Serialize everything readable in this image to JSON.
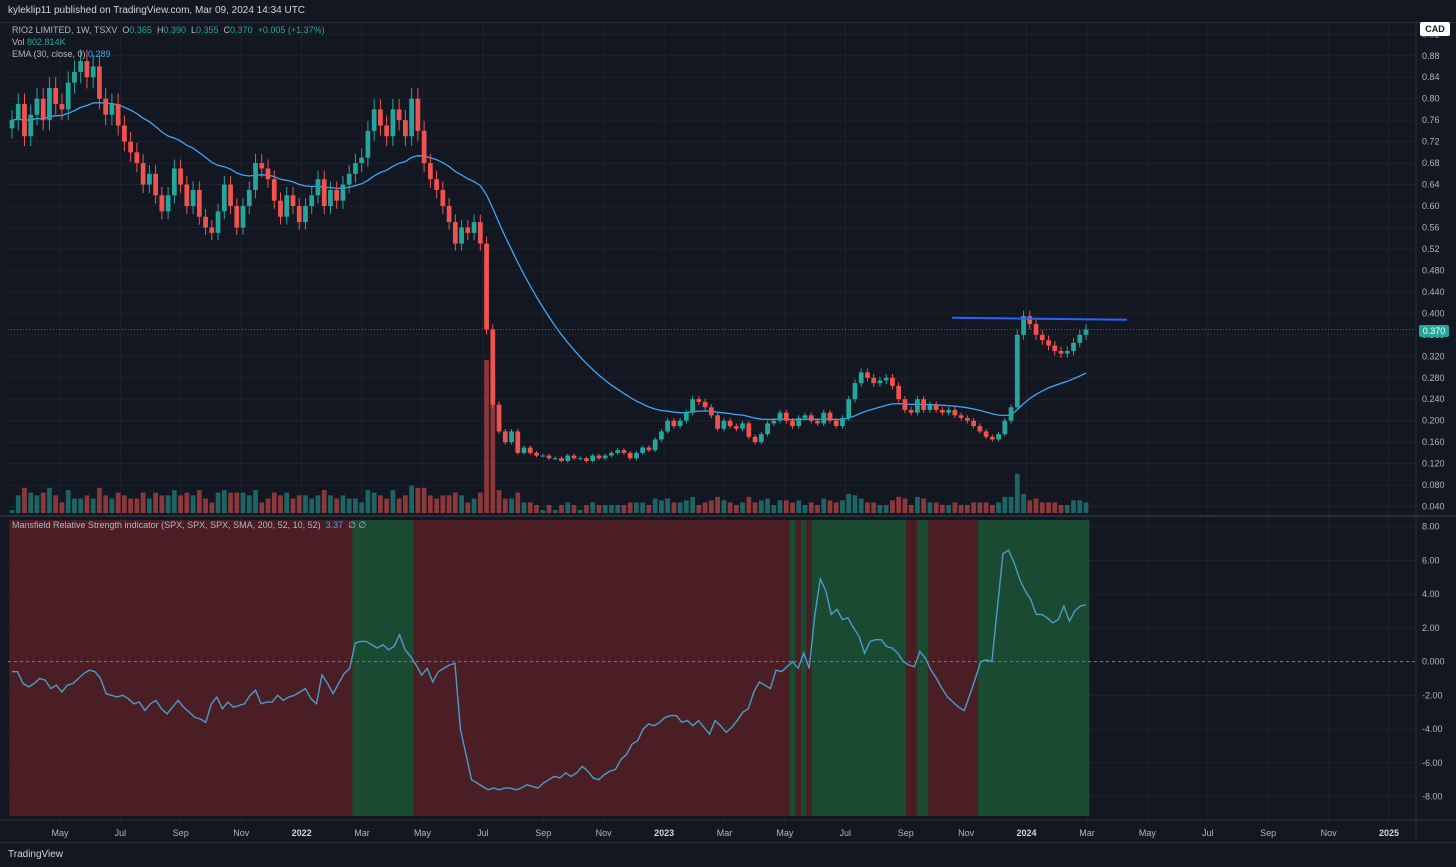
{
  "header": {
    "published": "kyleklip11 published on TradingView.com, Mar 09, 2024 14:34 UTC"
  },
  "legend": {
    "symbol": "RIO2 LIMITED, 1W, TSXV",
    "o_label": "O",
    "o": "0.365",
    "h_label": "H",
    "h": "0.390",
    "l_label": "L",
    "l": "0.355",
    "c_label": "C",
    "c": "0.370",
    "change": "+0.005 (+1.37%)",
    "vol_label": "Vol",
    "vol": "802.814K",
    "ema_label": "EMA (30, close, 0)",
    "ema": "0.289"
  },
  "indicator": {
    "label": "Mansfield Relative Strength indicator (SPX, SPX, SPX, SMA, 200, 52, 10, 52)",
    "value": "3.37",
    "extra": "∅ ∅"
  },
  "currency": "CAD",
  "last_price": "0.370",
  "footer": {
    "brand": "TradingView"
  },
  "colors": {
    "up": "#26a69a",
    "down": "#ef5350",
    "ema": "#42a5f5",
    "rs_line": "#4a9cc8",
    "resistance": "#2962ff",
    "bg_green": "#1b4a32",
    "bg_red": "#4a1e24"
  },
  "chart_data": [
    {
      "type": "candlestick",
      "title": "RIO2 LIMITED, 1W, TSXV",
      "interval": "1W",
      "x_ticks": [
        "May",
        "Jul",
        "Sep",
        "Nov",
        "2022",
        "Mar",
        "May",
        "Jul",
        "Sep",
        "Nov",
        "2023",
        "Mar",
        "May",
        "Jul",
        "Sep",
        "Nov",
        "2024",
        "Mar",
        "May",
        "Jul",
        "Sep",
        "Nov",
        "2025"
      ],
      "y_ticks": [
        "0.92",
        "0.88",
        "0.84",
        "0.80",
        "0.76",
        "0.72",
        "0.68",
        "0.64",
        "0.60",
        "0.56",
        "0.52",
        "0.480",
        "0.440",
        "0.400",
        "0.360",
        "0.320",
        "0.280",
        "0.240",
        "0.200",
        "0.160",
        "0.120",
        "0.080",
        "0.040"
      ],
      "y_range": [
        0.028,
        0.928
      ],
      "close": [
        0.76,
        0.79,
        0.73,
        0.77,
        0.8,
        0.76,
        0.82,
        0.79,
        0.78,
        0.83,
        0.85,
        0.87,
        0.84,
        0.86,
        0.8,
        0.77,
        0.79,
        0.75,
        0.72,
        0.7,
        0.68,
        0.64,
        0.66,
        0.62,
        0.59,
        0.62,
        0.67,
        0.64,
        0.6,
        0.63,
        0.58,
        0.56,
        0.55,
        0.59,
        0.64,
        0.6,
        0.56,
        0.6,
        0.63,
        0.68,
        0.67,
        0.65,
        0.61,
        0.58,
        0.62,
        0.6,
        0.57,
        0.6,
        0.62,
        0.65,
        0.6,
        0.63,
        0.61,
        0.64,
        0.66,
        0.68,
        0.69,
        0.74,
        0.78,
        0.75,
        0.73,
        0.78,
        0.76,
        0.73,
        0.8,
        0.74,
        0.68,
        0.65,
        0.63,
        0.6,
        0.57,
        0.53,
        0.56,
        0.55,
        0.57,
        0.53,
        0.37,
        0.23,
        0.18,
        0.16,
        0.18,
        0.14,
        0.15,
        0.14,
        0.135,
        0.135,
        0.13,
        0.13,
        0.125,
        0.135,
        0.13,
        0.13,
        0.125,
        0.135,
        0.13,
        0.135,
        0.14,
        0.145,
        0.14,
        0.13,
        0.14,
        0.15,
        0.145,
        0.165,
        0.18,
        0.2,
        0.19,
        0.2,
        0.215,
        0.24,
        0.235,
        0.225,
        0.21,
        0.185,
        0.2,
        0.19,
        0.185,
        0.195,
        0.17,
        0.16,
        0.175,
        0.195,
        0.2,
        0.215,
        0.2,
        0.19,
        0.205,
        0.21,
        0.2,
        0.195,
        0.215,
        0.2,
        0.19,
        0.205,
        0.24,
        0.27,
        0.29,
        0.28,
        0.27,
        0.275,
        0.28,
        0.265,
        0.24,
        0.22,
        0.215,
        0.24,
        0.22,
        0.23,
        0.22,
        0.215,
        0.22,
        0.21,
        0.205,
        0.2,
        0.19,
        0.18,
        0.17,
        0.165,
        0.175,
        0.2,
        0.225,
        0.36,
        0.395,
        0.38,
        0.36,
        0.35,
        0.34,
        0.33,
        0.325,
        0.33,
        0.345,
        0.36,
        0.37
      ],
      "ema": {
        "label": "EMA (30, close, 0)",
        "last": 0.289
      },
      "resistance_line": 0.39,
      "last_price": 0.37
    },
    {
      "type": "bar",
      "title": "Vol",
      "series": [
        {
          "name": "Vol",
          "last": "802.814K"
        }
      ]
    },
    {
      "type": "line",
      "title": "Mansfield Relative Strength indicator (SPX, SPX, SPX, SMA, 200, 52, 10, 52)",
      "y_ticks": [
        "8.00",
        "6.00",
        "4.00",
        "2.00",
        "0.000",
        "-2.00",
        "-4.00",
        "-6.00",
        "-8.00"
      ],
      "y_range": [
        -8.8,
        8.4
      ],
      "zero_line": 0,
      "values": [
        -0.6,
        -0.6,
        -1.3,
        -1.5,
        -1.3,
        -1.0,
        -1.1,
        -1.6,
        -1.4,
        -1.8,
        -1.4,
        -1.3,
        -1.0,
        -0.7,
        -0.5,
        -0.6,
        -1.0,
        -1.9,
        -2.0,
        -2.1,
        -2.0,
        -2.2,
        -2.5,
        -2.4,
        -2.9,
        -2.5,
        -2.3,
        -2.8,
        -3.1,
        -2.7,
        -2.3,
        -2.7,
        -3.0,
        -3.3,
        -3.4,
        -3.6,
        -2.5,
        -2.1,
        -2.8,
        -2.4,
        -2.7,
        -2.6,
        -2.5,
        -2.0,
        -1.7,
        -2.5,
        -2.4,
        -2.4,
        -2.0,
        -2.3,
        -2.1,
        -2.0,
        -1.8,
        -1.6,
        -2.2,
        -2.5,
        -0.8,
        -1.3,
        -1.9,
        -1.3,
        -0.7,
        -0.4,
        1.1,
        1.2,
        1.2,
        1.0,
        0.8,
        1.0,
        0.7,
        0.9,
        1.6,
        0.7,
        0.3,
        -0.2,
        -0.8,
        -0.4,
        -1.2,
        -0.6,
        -0.4,
        -0.2,
        -0.1,
        -4.0,
        -5.5,
        -7.0,
        -7.2,
        -7.4,
        -7.6,
        -7.5,
        -7.6,
        -7.5,
        -7.5,
        -7.6,
        -7.5,
        -7.3,
        -7.4,
        -7.5,
        -7.2,
        -7.0,
        -6.8,
        -6.9,
        -6.6,
        -6.8,
        -6.6,
        -6.2,
        -6.5,
        -6.9,
        -7.0,
        -6.7,
        -6.5,
        -6.4,
        -5.8,
        -5.5,
        -4.9,
        -4.7,
        -4.0,
        -3.7,
        -3.8,
        -3.6,
        -3.3,
        -3.2,
        -3.2,
        -3.6,
        -3.5,
        -3.8,
        -3.5,
        -3.9,
        -4.3,
        -3.5,
        -3.8,
        -4.2,
        -3.9,
        -3.5,
        -3.0,
        -2.8,
        -1.8,
        -1.2,
        -1.4,
        -1.6,
        -0.5,
        -0.6,
        -0.3,
        0,
        -0.4,
        0.5,
        -0.4,
        2.7,
        4.9,
        4.2,
        2.8,
        3.1,
        2.5,
        2.6,
        2.0,
        1.5,
        0.5,
        1.2,
        1.3,
        1.3,
        0.9,
        0.8,
        0.5,
        0,
        -0.2,
        -0.3,
        0.6,
        0.2,
        -0.5,
        -1.0,
        -1.6,
        -2.1,
        -2.4,
        -2.7,
        -2.9,
        -2.0,
        -1.0,
        0,
        0.1,
        0,
        3.2,
        6.4,
        6.6,
        5.9,
        4.9,
        4.2,
        3.7,
        2.8,
        2.8,
        2.6,
        2.3,
        2.5,
        3.3,
        2.4,
        3.0,
        3.3,
        3.37
      ],
      "last": 3.37
    }
  ]
}
